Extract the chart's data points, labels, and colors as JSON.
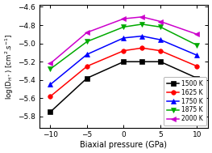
{
  "x": [
    -10,
    -5,
    0,
    2.5,
    5,
    10
  ],
  "series": [
    {
      "label": "1500 K",
      "color": "#000000",
      "marker": "s",
      "values": [
        -5.75,
        -5.38,
        -5.2,
        -5.2,
        -5.2,
        -5.38
      ]
    },
    {
      "label": "1625 K",
      "color": "#ff0000",
      "marker": "o",
      "values": [
        -5.58,
        -5.25,
        -5.08,
        -5.05,
        -5.08,
        -5.25
      ]
    },
    {
      "label": "1750 K",
      "color": "#0000ff",
      "marker": "^",
      "values": [
        -5.45,
        -5.12,
        -4.94,
        -4.92,
        -4.96,
        -5.13
      ]
    },
    {
      "label": "1875 K",
      "color": "#00aa00",
      "marker": "v",
      "values": [
        -5.28,
        -4.98,
        -4.82,
        -4.79,
        -4.82,
        -5.02
      ]
    },
    {
      "label": "2000 K",
      "color": "#cc00cc",
      "marker": "<",
      "values": [
        -5.22,
        -4.88,
        -4.73,
        -4.71,
        -4.76,
        -4.9
      ]
    }
  ],
  "xlabel": "Biaxial pressure (GPa)",
  "ylabel": "log(D$_{\\mathrm{H^+}}$) [cm$^2$.s$^{-1}$]",
  "xlim": [
    -11.5,
    11.5
  ],
  "ylim": [
    -5.92,
    -4.58
  ],
  "yticks": [
    -4.6,
    -4.8,
    -5.0,
    -5.2,
    -5.4,
    -5.6,
    -5.8
  ],
  "xticks": [
    -10,
    -5,
    0,
    5,
    10
  ],
  "background_color": "#ffffff",
  "plot_bg_color": "#ffffff"
}
